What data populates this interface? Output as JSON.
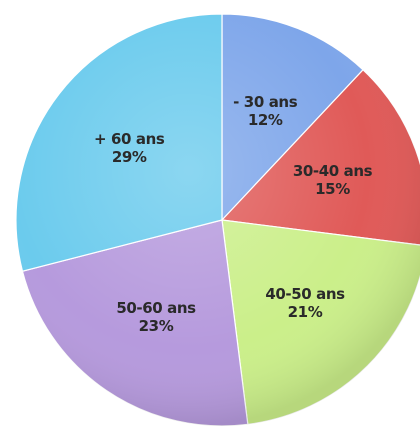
{
  "chart_data": {
    "type": "pie",
    "title": "",
    "start_angle_deg": 0,
    "direction": "clockwise",
    "slices": [
      {
        "category": "- 30 ans",
        "value": 12,
        "value_label": "12%",
        "color": "#7ea6ea"
      },
      {
        "category": "30-40 ans",
        "value": 15,
        "value_label": "15%",
        "color": "#e05a58"
      },
      {
        "category": "40-50 ans",
        "value": 21,
        "value_label": "21%",
        "color": "#cbef8a"
      },
      {
        "category": "50-60 ans",
        "value": 23,
        "value_label": "23%",
        "color": "#b69add"
      },
      {
        "category": "+ 60 ans",
        "value": 29,
        "value_label": "29%",
        "color": "#6bcbed"
      }
    ]
  }
}
